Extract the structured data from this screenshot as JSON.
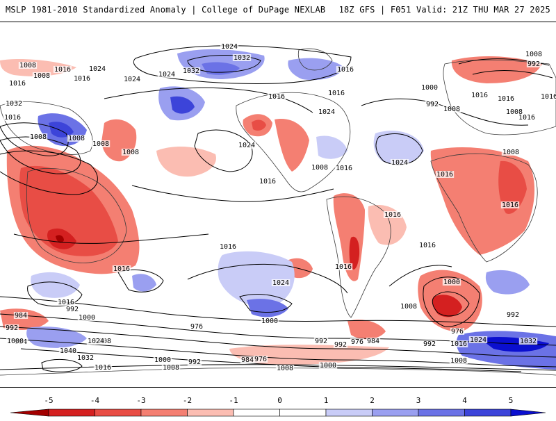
{
  "header": {
    "title": "MSLP 1981-2010 Standardized Anomaly | College of DuPage NEXLAB",
    "run_info": "18Z GFS | F051 Valid: 21Z THU MAR 27 2025"
  },
  "colors": {
    "neg5": "#a30000",
    "neg4": "#d42020",
    "neg3": "#e84d45",
    "neg2": "#f47f72",
    "neg1": "#fbbdb2",
    "zero": "#ffffff",
    "pos1": "#c9ccf7",
    "pos2": "#9a9ff0",
    "pos3": "#6b72e6",
    "pos4": "#3c44d9",
    "pos5": "#0b0fcf",
    "contour": "#000000",
    "coast": "#3a3a3a"
  },
  "colorbar": {
    "ticks": [
      "-5",
      "-4",
      "-3",
      "-2",
      "-1",
      "0",
      "1",
      "2",
      "3",
      "4",
      "5"
    ]
  },
  "contour_labels": [
    "1024",
    "1032",
    "1008",
    "992",
    "1016",
    "1008",
    "1016",
    "1024",
    "1032",
    "1024",
    "1016",
    "1008",
    "1016",
    "1024",
    "1032",
    "1016",
    "1024",
    "1016",
    "1016",
    "1024",
    "1000",
    "992",
    "1008",
    "1016",
    "1008",
    "1016",
    "1016",
    "1008",
    "1024",
    "1016",
    "1008",
    "1008",
    "1008",
    "1008",
    "1016",
    "1008",
    "1016",
    "1016",
    "1016",
    "1016",
    "1024",
    "1016",
    "1016",
    "1000",
    "992",
    "976",
    "1016",
    "1008",
    "1000",
    "984",
    "992",
    "1016",
    "1000",
    "992",
    "976",
    "1008",
    "992",
    "984",
    "1024",
    "1040",
    "1032",
    "1000",
    "992",
    "984",
    "976",
    "1008",
    "1000",
    "992",
    "976",
    "984",
    "992",
    "1016",
    "1024",
    "1032",
    "1008",
    "1008",
    "1000",
    "1016",
    "1016"
  ]
}
